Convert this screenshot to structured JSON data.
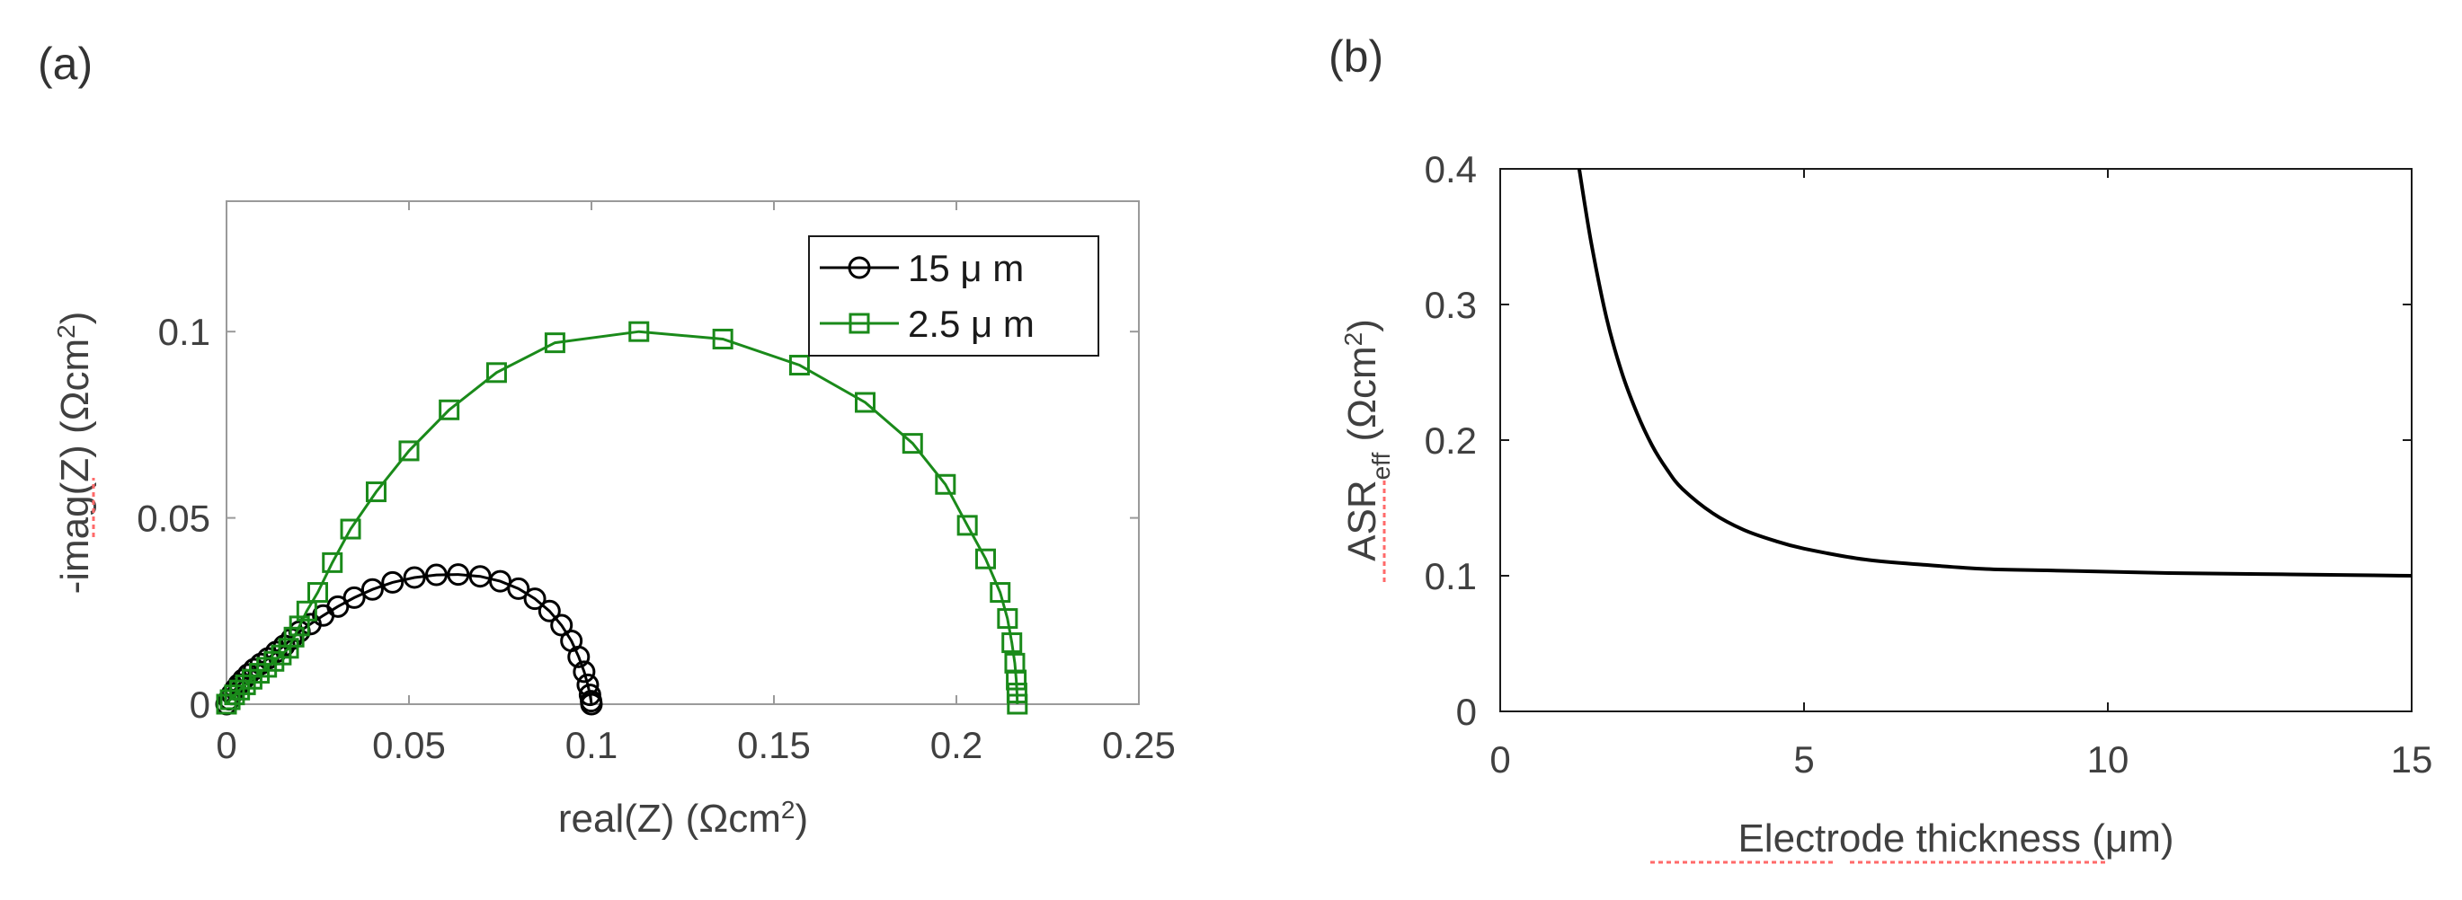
{
  "figure": {
    "panel_a_label": "(a)",
    "panel_b_label": "(b)"
  },
  "chart_data": [
    {
      "id": "panel-a",
      "type": "scatter",
      "title": "",
      "xlabel_main": "real(Z) (Ωcm",
      "xlabel_sup": "2",
      "xlabel_end": ")",
      "ylabel_main": "-imag(Z) (Ωcm",
      "ylabel_sup": "2",
      "ylabel_end": ")",
      "xlim": [
        0,
        0.25
      ],
      "ylim": [
        0,
        0.135
      ],
      "xticks": [
        0,
        0.05,
        0.1,
        0.15,
        0.2,
        0.25
      ],
      "xtick_labels": [
        "0",
        "0.05",
        "0.1",
        "0.15",
        "0.2",
        "0.25"
      ],
      "yticks": [
        0,
        0.05,
        0.1
      ],
      "ytick_labels": [
        "0",
        "0.05",
        "0.1"
      ],
      "legend_position": "top-right",
      "series": [
        {
          "name": "15 μ m",
          "marker": "circle",
          "color": "#000000",
          "x": [
            0.0,
            0.0007,
            0.0015,
            0.0024,
            0.0034,
            0.0046,
            0.006,
            0.0076,
            0.0094,
            0.0114,
            0.0136,
            0.0158,
            0.0178,
            0.02,
            0.023,
            0.0265,
            0.0305,
            0.035,
            0.04,
            0.0455,
            0.0515,
            0.0575,
            0.0635,
            0.0695,
            0.075,
            0.08,
            0.0845,
            0.0885,
            0.0918,
            0.0945,
            0.0965,
            0.098,
            0.099,
            0.0996,
            0.0999,
            0.1
          ],
          "y": [
            0.0,
            0.0013,
            0.0027,
            0.004,
            0.0053,
            0.0066,
            0.008,
            0.0094,
            0.0108,
            0.0123,
            0.014,
            0.0157,
            0.0175,
            0.0195,
            0.0215,
            0.0238,
            0.0262,
            0.0286,
            0.0308,
            0.0327,
            0.034,
            0.0347,
            0.0348,
            0.0343,
            0.033,
            0.031,
            0.0283,
            0.025,
            0.0212,
            0.017,
            0.0127,
            0.0087,
            0.0052,
            0.0025,
            0.0008,
            0.0
          ]
        },
        {
          "name": "2.5 μ m",
          "marker": "square",
          "color": "#1a8a1a",
          "x": [
            0.0,
            0.001,
            0.0022,
            0.0036,
            0.0052,
            0.007,
            0.009,
            0.011,
            0.013,
            0.015,
            0.017,
            0.0185,
            0.02,
            0.022,
            0.025,
            0.029,
            0.034,
            0.041,
            0.05,
            0.061,
            0.074,
            0.09,
            0.113,
            0.136,
            0.157,
            0.175,
            0.188,
            0.197,
            0.203,
            0.208,
            0.212,
            0.214,
            0.2152,
            0.216,
            0.2164,
            0.2166,
            0.2167
          ],
          "y": [
            0.0,
            0.0012,
            0.0025,
            0.0038,
            0.0052,
            0.0067,
            0.0083,
            0.0099,
            0.0115,
            0.0132,
            0.015,
            0.018,
            0.021,
            0.025,
            0.03,
            0.038,
            0.047,
            0.057,
            0.068,
            0.079,
            0.089,
            0.097,
            0.1,
            0.098,
            0.091,
            0.081,
            0.07,
            0.059,
            0.048,
            0.039,
            0.03,
            0.023,
            0.0165,
            0.011,
            0.0065,
            0.003,
            0.0
          ]
        }
      ]
    },
    {
      "id": "panel-b",
      "type": "line",
      "title": "",
      "xlabel": "Electrode thickness (μm)",
      "xlabel_word1": "Electrode",
      "xlabel_word2": "thickness",
      "xlabel_end": "(μm)",
      "ylabel_main": "ASR",
      "ylabel_sub": "eff",
      "ylabel_unit": " (Ωcm",
      "ylabel_sup": "2",
      "ylabel_end": ")",
      "xlim": [
        0,
        15
      ],
      "ylim": [
        0,
        0.4
      ],
      "xticks": [
        0,
        5,
        10,
        15
      ],
      "xtick_labels": [
        "0",
        "5",
        "10",
        "15"
      ],
      "yticks": [
        0,
        0.1,
        0.2,
        0.3,
        0.4
      ],
      "ytick_labels": [
        "0",
        "0.1",
        "0.2",
        "0.3",
        "0.4"
      ],
      "series": [
        {
          "name": "ASR_eff",
          "color": "#000000",
          "x": [
            1.3,
            1.5,
            1.75,
            2.0,
            2.25,
            2.5,
            2.75,
            3.0,
            3.5,
            4.0,
            4.5,
            5.0,
            6.0,
            7.0,
            8.0,
            9.0,
            10.0,
            11.0,
            12.0,
            13.0,
            14.0,
            15.0
          ],
          "y": [
            0.4,
            0.345,
            0.29,
            0.25,
            0.22,
            0.196,
            0.178,
            0.164,
            0.146,
            0.134,
            0.126,
            0.12,
            0.112,
            0.108,
            0.105,
            0.104,
            0.103,
            0.102,
            0.1015,
            0.101,
            0.1005,
            0.1
          ]
        }
      ]
    }
  ]
}
